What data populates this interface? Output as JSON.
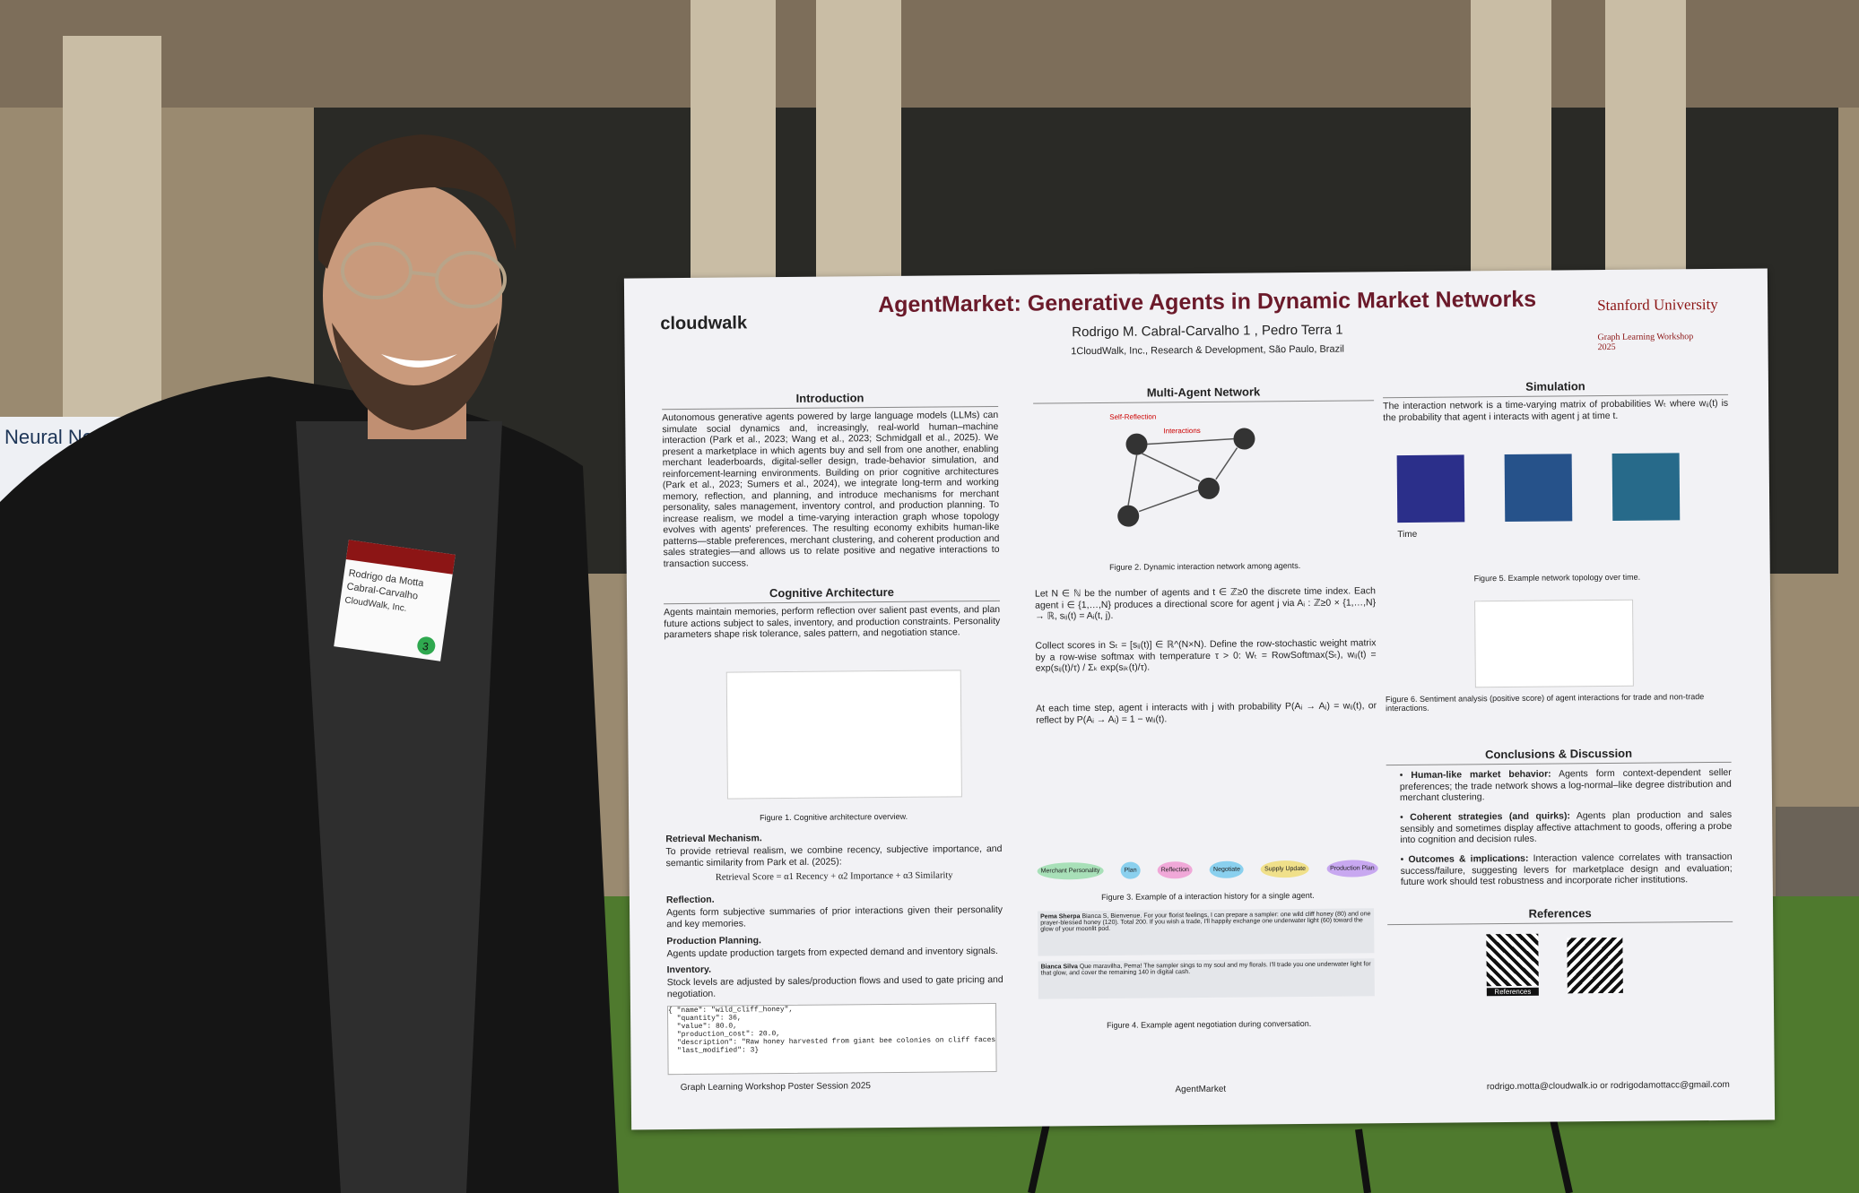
{
  "left_poster": {
    "title": "Neural Networks"
  },
  "badge": {
    "lines": [
      "Rodrigo da Motta",
      "Cabral-Carvalho",
      "CloudWalk, Inc."
    ],
    "number": "3"
  },
  "poster": {
    "logo": "cloudwalk",
    "title": "AgentMarket: Generative Agents in Dynamic Market Networks",
    "authors": "Rodrigo M. Cabral-Carvalho 1 ,   Pedro Terra 1",
    "affiliation": "1CloudWalk, Inc., Research & Development, São Paulo, Brazil",
    "university": "Stanford University",
    "workshop": "Graph Learning Workshop 2025",
    "introduction": {
      "heading": "Introduction",
      "text": "Autonomous generative agents powered by large language models (LLMs) can simulate social dynamics and, increasingly, real-world human–machine interaction (Park et al., 2023; Wang et al., 2023; Schmidgall et al., 2025). We present a marketplace in which agents buy and sell from one another, enabling merchant leaderboards, digital-seller design, trade-behavior simulation, and reinforcement-learning environments. Building on prior cognitive architectures (Park et al., 2023; Sumers et al., 2024), we integrate long-term and working memory, reflection, and planning, and introduce mechanisms for merchant personality, sales management, inventory control, and production planning. To increase realism, we model a time-varying interaction graph whose topology evolves with agents' preferences. The resulting economy exhibits human-like patterns—stable preferences, merchant clustering, and coherent production and sales strategies—and allows us to relate positive and negative interactions to transaction success."
    },
    "cognitive": {
      "heading": "Cognitive Architecture",
      "text": "Agents maintain memories, perform reflection over salient past events, and plan future actions subject to sales, inventory, and production constraints. Personality parameters shape risk tolerance, sales pattern, and negotiation stance.",
      "caption": "Figure 1. Cognitive architecture overview."
    },
    "retrieval": {
      "heading": "Retrieval Mechanism.",
      "text": "To provide retrieval realism, we combine recency, subjective importance, and semantic similarity from Park et al. (2025):",
      "formula": "Retrieval Score = α1 Recency + α2 Importance + α3 Similarity"
    },
    "reflection": {
      "heading": "Reflection.",
      "text": "Agents form subjective summaries of prior interactions given their personality and key memories."
    },
    "production": {
      "heading": "Production Planning.",
      "text": "Agents update production targets from expected demand and inventory signals."
    },
    "inventory": {
      "heading": "Inventory.",
      "text": "Stock levels are adjusted by sales/production flows and used to gate pricing and negotiation."
    },
    "code": "{ \"name\": \"wild_cliff_honey\",\n  \"quantity\": 36,\n  \"value\": 80.0,\n  \"production_cost\": 20.0,\n  \"description\": \"Raw honey harvested from giant bee colonies on cliff faces\",\n  \"last_modified\": 3}",
    "network": {
      "heading": "Multi-Agent Network",
      "caption": "Figure 2. Dynamic interaction network among agents.",
      "labels": [
        "Self-Reflection",
        "Interactions"
      ]
    },
    "math": [
      "Let N ∈ ℕ be the number of agents and t ∈ ℤ≥0 the discrete time index. Each agent i ∈ {1,…,N} produces a directional score for agent j via  Aᵢ : ℤ≥0 × {1,…,N} → ℝ,   sᵢⱼ(t) = Aᵢ(t, j).",
      "Collect scores in Sₜ = [sᵢⱼ(t)] ∈ ℝ^(N×N). Define the row-stochastic weight matrix by a row-wise softmax with temperature τ > 0:  Wₜ = RowSoftmax(Sₜ),  wᵢⱼ(t) = exp(sᵢⱼ(t)/τ) / Σₖ exp(sᵢₖ(t)/τ).",
      "At each time step, agent i interacts with j with probability P(Aᵢ → Aⱼ) = wᵢⱼ(t), or reflect by P(Aᵢ → Aᵢ) = 1 − wᵢᵢ(t)."
    ],
    "history_caption": "Figure 3. Example of a interaction history for a single agent.",
    "history_nodes": [
      "Merchant Personality",
      "Plan",
      "Reflection",
      "Negotiate",
      "Supply Update",
      "Production Plan"
    ],
    "negotiation": [
      {
        "speaker": "Pema Sherpa",
        "text": "Bianca S, Bienvenue. For your florist feelings, I can prepare a sampler: one wild cliff honey (80) and one prayer-blessed honey (120). Total 200. If you wish a trade, I'll happily exchange one underwater light (60) toward the glow of your moonlit pod."
      },
      {
        "speaker": "Bianca Silva",
        "text": "Que maravilha, Pema! The sampler sings to my soul and my florals. I'll trade you one underwater light for that glow, and cover the remaining 140 in digital cash."
      }
    ],
    "negotiation_caption": "Figure 4. Example agent negotiation during conversation.",
    "simulation": {
      "heading": "Simulation",
      "text": "The interaction network is a time-varying matrix of probabilities Wₜ where wᵢⱼ(t) is the probability that agent i interacts with agent j at time t.",
      "axis": "Time",
      "caption": "Figure 5. Example network topology over time.",
      "caption2": "Figure 6. Sentiment analysis (positive score) of agent interactions for trade and non-trade interactions."
    },
    "conclusions": {
      "heading": "Conclusions & Discussion",
      "items": [
        {
          "lead": "Human-like market behavior:",
          "text": "Agents form context-dependent seller preferences; the trade network shows a log-normal–like degree distribution and merchant clustering."
        },
        {
          "lead": "Coherent strategies (and quirks):",
          "text": "Agents plan production and sales sensibly and sometimes display affective attachment to goods, offering a probe into cognition and decision rules."
        },
        {
          "lead": "Outcomes & implications:",
          "text": "Interaction valence correlates with transaction success/failure, suggesting levers for marketplace design and evaluation; future work should test robustness and incorporate richer institutions."
        }
      ]
    },
    "references": {
      "heading": "References",
      "qr_label": "References"
    },
    "footer": {
      "left": "Graph Learning Workshop Poster Session 2025",
      "center": "AgentMarket",
      "right": "rodrigo.motta@cloudwalk.io or rodrigodamottacc@gmail.com"
    }
  }
}
